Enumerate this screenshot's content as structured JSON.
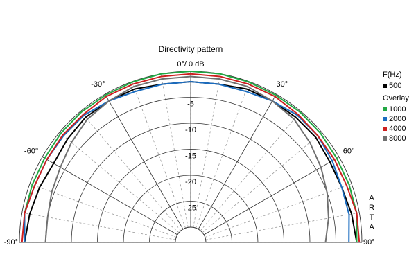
{
  "chart_data": {
    "type": "polar",
    "title": "Directivity pattern",
    "zero_label": "0°/ 0 dB",
    "legend_title": "F(Hz)",
    "overlay_label": "Overlay",
    "watermark": "ARTA",
    "rlim": [
      -30,
      0
    ],
    "rticks": [
      -5,
      -10,
      -15,
      -20,
      -25
    ],
    "thetaticks": [
      {
        "value": -90,
        "label": "-90°"
      },
      {
        "value": -60,
        "label": "-60°"
      },
      {
        "value": -30,
        "label": "-30°"
      },
      {
        "value": 30,
        "label": "30°"
      },
      {
        "value": 60,
        "label": "60°"
      },
      {
        "value": 90,
        "label": "90°"
      }
    ],
    "theta": [
      -90,
      -80,
      -70,
      -60,
      -50,
      -40,
      -30,
      -20,
      -10,
      0,
      10,
      20,
      30,
      40,
      50,
      60,
      70,
      80,
      90
    ],
    "series": [
      {
        "name": "500",
        "color": "#000000",
        "values": [
          -1,
          -1.5,
          -2,
          -2.5,
          -2,
          -1.5,
          -1.5,
          -1.5,
          -2,
          -2,
          -2,
          -1.5,
          -1.5,
          -1.5,
          -1.5,
          -2,
          -2,
          -1.5,
          -1
        ]
      },
      {
        "name": "1000",
        "color": "#22a844",
        "values": [
          -1,
          -0.5,
          -0.5,
          -0.5,
          -0.3,
          -0.2,
          -0.2,
          -0.1,
          0,
          0,
          0,
          -0.1,
          -0.2,
          -0.2,
          -0.3,
          -0.5,
          -0.5,
          -0.5,
          -1
        ]
      },
      {
        "name": "2000",
        "color": "#1a6cc0",
        "values": [
          -1,
          -0.5,
          -1,
          -1,
          -1,
          -1,
          -1.5,
          -2,
          -2,
          -2,
          -2,
          -2,
          -1.5,
          -1,
          -1,
          -1.5,
          -2,
          -2,
          -2.5
        ]
      },
      {
        "name": "4000",
        "color": "#cc1f1f",
        "values": [
          -0.5,
          -0.5,
          -1,
          -1,
          -0.8,
          -0.8,
          -0.5,
          -0.5,
          -0.5,
          -0.5,
          -0.5,
          -0.5,
          -0.5,
          -0.8,
          -1,
          -1,
          -1,
          -0.5,
          -0.5
        ]
      },
      {
        "name": "8000",
        "color": "#707070",
        "values": [
          -5,
          -5,
          -4.5,
          -4,
          -3,
          -2,
          -1.5,
          -1,
          -1,
          -1,
          -1,
          -1,
          -1.5,
          -2,
          -3,
          -4,
          -5,
          -6,
          -7
        ]
      }
    ]
  }
}
